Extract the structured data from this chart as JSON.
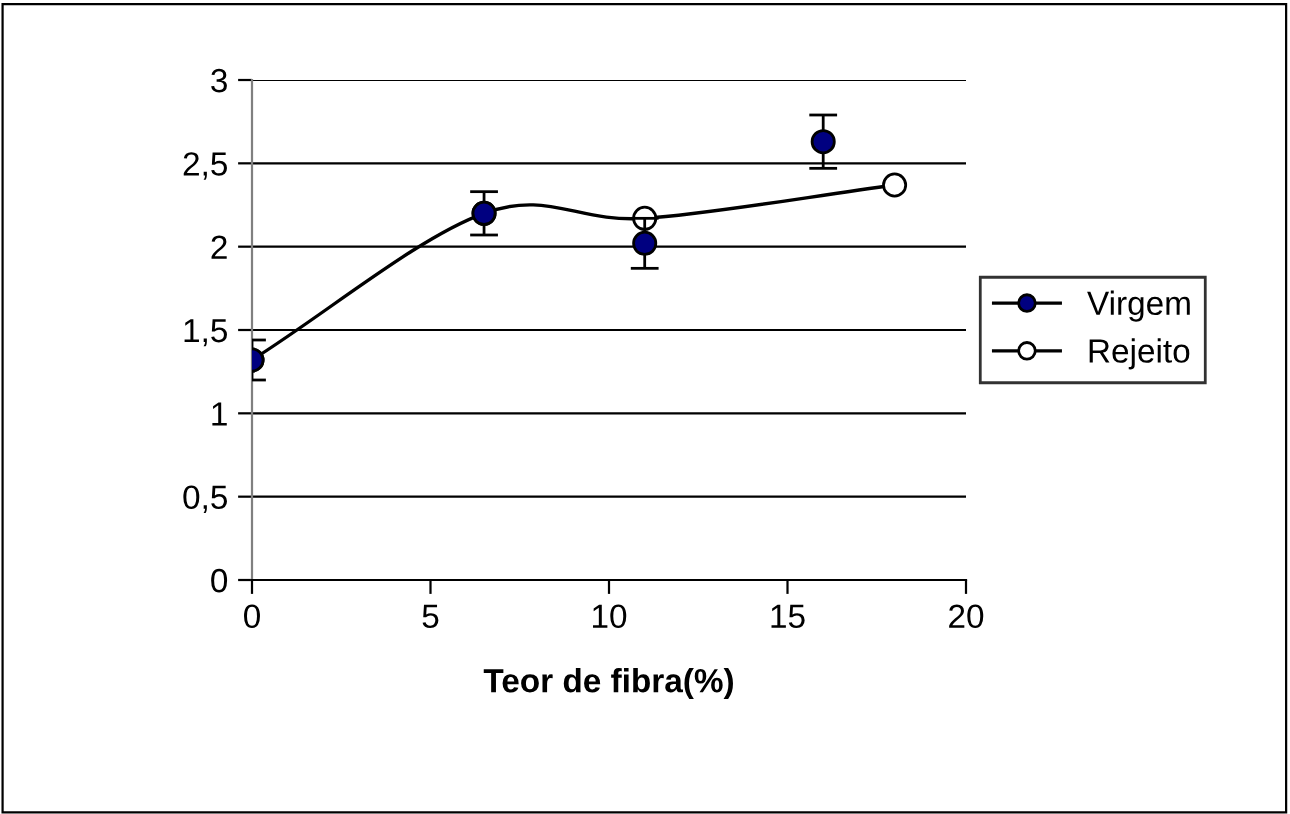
{
  "chart_data": {
    "type": "scatter",
    "xlabel": "Teor de fibra(%)",
    "xlim": [
      0,
      20
    ],
    "xticks": [
      0,
      5,
      10,
      15,
      20
    ],
    "ylim": [
      0,
      3
    ],
    "yticks": [
      {
        "value": 0,
        "label": "0"
      },
      {
        "value": 0.5,
        "label": "0,5"
      },
      {
        "value": 1,
        "label": "1"
      },
      {
        "value": 1.5,
        "label": "1,5"
      },
      {
        "value": 2,
        "label": "2"
      },
      {
        "value": 2.5,
        "label": "2,5"
      },
      {
        "value": 3,
        "label": "3"
      }
    ],
    "grid": "y",
    "legend": "right",
    "series": [
      {
        "name": "Virgem",
        "color": "#000080",
        "marker": "circle",
        "x": [
          0,
          6.5,
          11,
          16
        ],
        "values": [
          1.32,
          2.2,
          2.02,
          2.63
        ],
        "errors": [
          0.12,
          0.13,
          0.15,
          0.16
        ]
      },
      {
        "name": "Rejeito",
        "type": "line",
        "color": "#000000",
        "marker": "circle",
        "x": [
          0,
          6.5,
          11,
          18
        ],
        "values": [
          1.32,
          2.2,
          2.17,
          2.37
        ]
      }
    ]
  }
}
